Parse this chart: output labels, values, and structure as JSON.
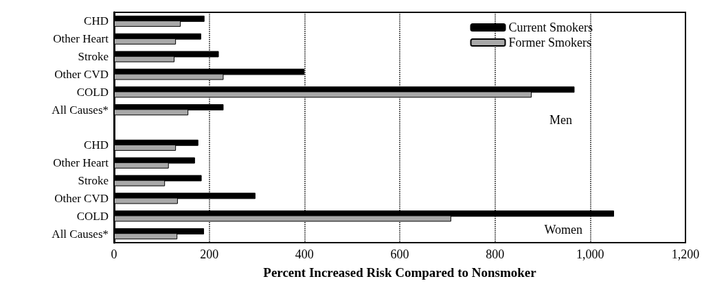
{
  "chart_data": {
    "type": "bar",
    "orientation": "horizontal",
    "xlabel": "Percent Increased Risk Compared to Nonsmoker",
    "categories": [
      "CHD",
      "Other Heart",
      "Stroke",
      "Other CVD",
      "COLD",
      "All Causes*",
      null,
      "CHD",
      "Other Heart",
      "Stroke",
      "Other CVD",
      "COLD",
      "All Causes*"
    ],
    "series": [
      {
        "name": "Current Smokers",
        "color": "#000000",
        "values": [
          190,
          183,
          220,
          400,
          967,
          230,
          null,
          177,
          170,
          184,
          297,
          1050,
          189
        ]
      },
      {
        "name": "Former Smokers",
        "color": "#a8a8a8",
        "values": [
          140,
          130,
          127,
          230,
          877,
          156,
          null,
          130,
          115,
          107,
          134,
          708,
          133
        ]
      }
    ],
    "xlim": [
      0,
      1200
    ],
    "xticks": [
      0,
      200,
      400,
      600,
      800,
      {
        "value": 1000,
        "label": "1,000"
      },
      {
        "value": 1200,
        "label": "1,200"
      }
    ],
    "annotations": [
      "Men",
      "Women"
    ],
    "grid": "x",
    "legend": "top right"
  }
}
